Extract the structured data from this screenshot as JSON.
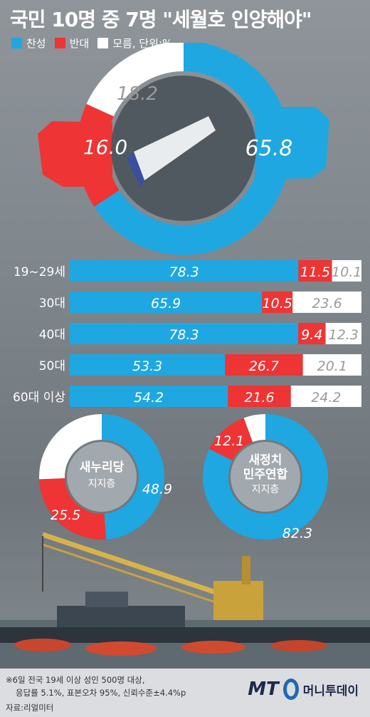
{
  "title": "국민 10명 중 7명 \"세월호 인양해야\"",
  "legend": {
    "yes": "찬성",
    "no": "반대",
    "unknown": "모름, 단위:%"
  },
  "colors": {
    "yes": "#1fa7e1",
    "no": "#ee3434",
    "unknown": "#ffffff",
    "unknown_text": "#9a9a9a"
  },
  "chart_data": [
    {
      "type": "pie",
      "slices": [
        {
          "name": "찬성",
          "value": 65.8
        },
        {
          "name": "반대",
          "value": 16.0
        },
        {
          "name": "모름",
          "value": 18.2
        }
      ],
      "labels": [
        "65.8",
        "16.0",
        "18.2"
      ]
    },
    {
      "type": "bar",
      "stacked": true,
      "orientation": "horizontal",
      "categories": [
        "19~29세",
        "30대",
        "40대",
        "50대",
        "60대 이상"
      ],
      "series": [
        {
          "name": "찬성",
          "values": [
            78.3,
            65.9,
            78.3,
            53.3,
            54.2
          ],
          "labels": [
            "78.3",
            "65.9",
            "78.3",
            "53.3",
            "54.2"
          ]
        },
        {
          "name": "반대",
          "values": [
            11.5,
            10.5,
            9.4,
            26.7,
            21.6
          ],
          "labels": [
            "11.5",
            "10.5",
            "9.4",
            "26.7",
            "21.6"
          ]
        },
        {
          "name": "모름",
          "values": [
            10.1,
            23.6,
            12.3,
            20.1,
            24.2
          ],
          "labels": [
            "10.1",
            "23.6",
            "12.3",
            "20.1",
            "24.2"
          ]
        }
      ]
    },
    {
      "type": "pie",
      "title": "새누리당",
      "subtitle": "지지층",
      "slices": [
        {
          "name": "찬성",
          "value": 48.9
        },
        {
          "name": "반대",
          "value": 25.5
        },
        {
          "name": "모름",
          "value": 25.6
        }
      ],
      "labels": [
        "48.9",
        "25.5",
        ""
      ]
    },
    {
      "type": "pie",
      "title": "새정치\n민주연합",
      "subtitle": "지지층",
      "slices": [
        {
          "name": "찬성",
          "value": 82.3
        },
        {
          "name": "반대",
          "value": 12.1
        },
        {
          "name": "모름",
          "value": 5.6
        }
      ],
      "labels": [
        "82.3",
        "12.1",
        ""
      ]
    }
  ],
  "footnote": {
    "line1": "※6일 전국 19세 이상 성인 500명 대상,",
    "line2": "응답률 5.1%, 표본오차 95%, 신뢰수준±4.4%p",
    "source": "자료:리얼미터"
  },
  "logo": {
    "mark": "MT",
    "name": "머니투데이"
  }
}
